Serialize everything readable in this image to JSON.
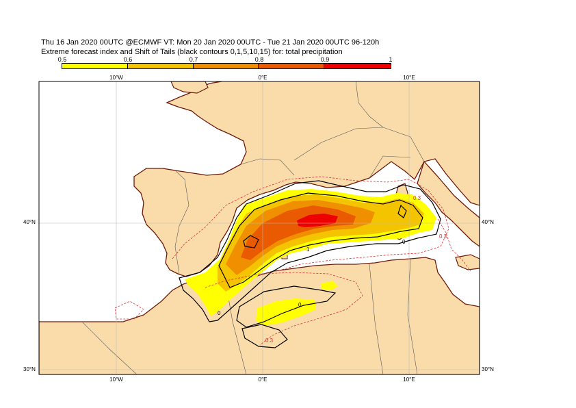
{
  "header": {
    "line1": "Thu 16 Jan 2020 00UTC @ECMWF VT: Mon 20 Jan 2020 00UTC - Tue 21 Jan 2020 00UTC  96-120h",
    "line2": "Extreme forecast index and Shift of Tails (black contours 0,1,5,10,15) for: total precipitation"
  },
  "colorbar": {
    "ticks": [
      "0.5",
      "0.6",
      "0.7",
      "0.8",
      "0.9",
      "1"
    ],
    "colors": [
      "#ffff00",
      "#f5c400",
      "#f09000",
      "#ea5a00",
      "#ee0000"
    ]
  },
  "map": {
    "lon_labels_top": [
      "10°W",
      "0°E",
      "10°E"
    ],
    "lon_labels_bottom": [
      "10°W",
      "0°E",
      "10°E"
    ],
    "lat_labels_left": [
      "40°N",
      "30°N"
    ],
    "lat_labels_right": [
      "40°N",
      "30°N"
    ],
    "contour_labels": [
      "1",
      "0",
      "0",
      "0",
      "0.3",
      "0.3",
      "0.3"
    ],
    "land_color": "#fadcaa",
    "sea_color": "#ffffff",
    "coast_color": "#6b1a0a"
  }
}
